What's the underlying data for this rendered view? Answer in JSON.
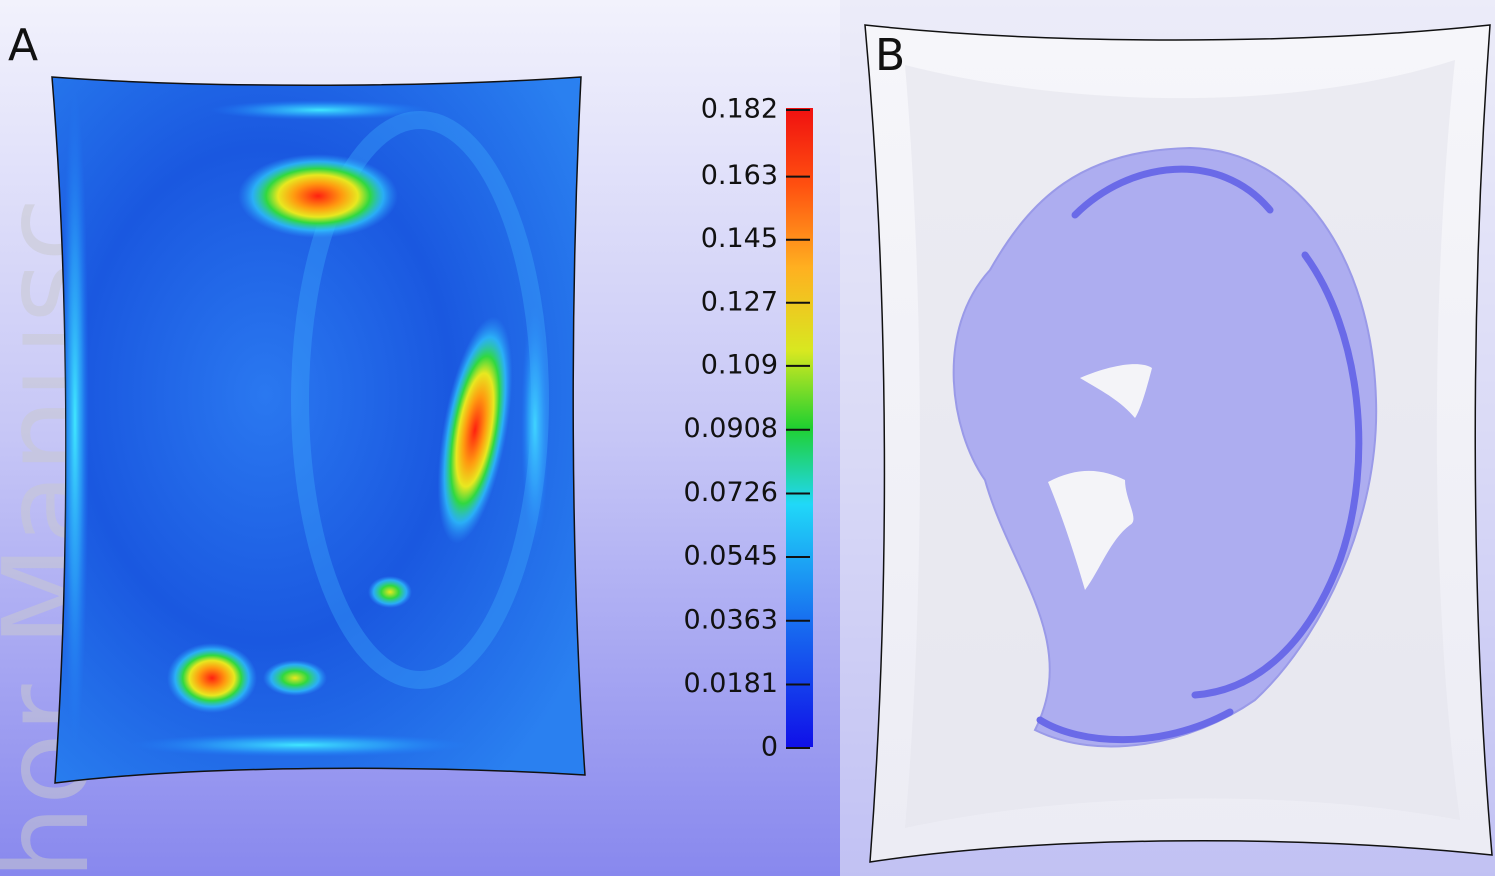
{
  "watermark": "hor Manusc",
  "panels": [
    {
      "label": "A"
    },
    {
      "label": "B"
    }
  ],
  "colorbar": {
    "lim": [
      0,
      0.182
    ],
    "ticks": [
      0,
      0.0181,
      0.0363,
      0.0545,
      0.0726,
      0.0908,
      0.109,
      0.127,
      0.145,
      0.163,
      0.182
    ]
  }
}
